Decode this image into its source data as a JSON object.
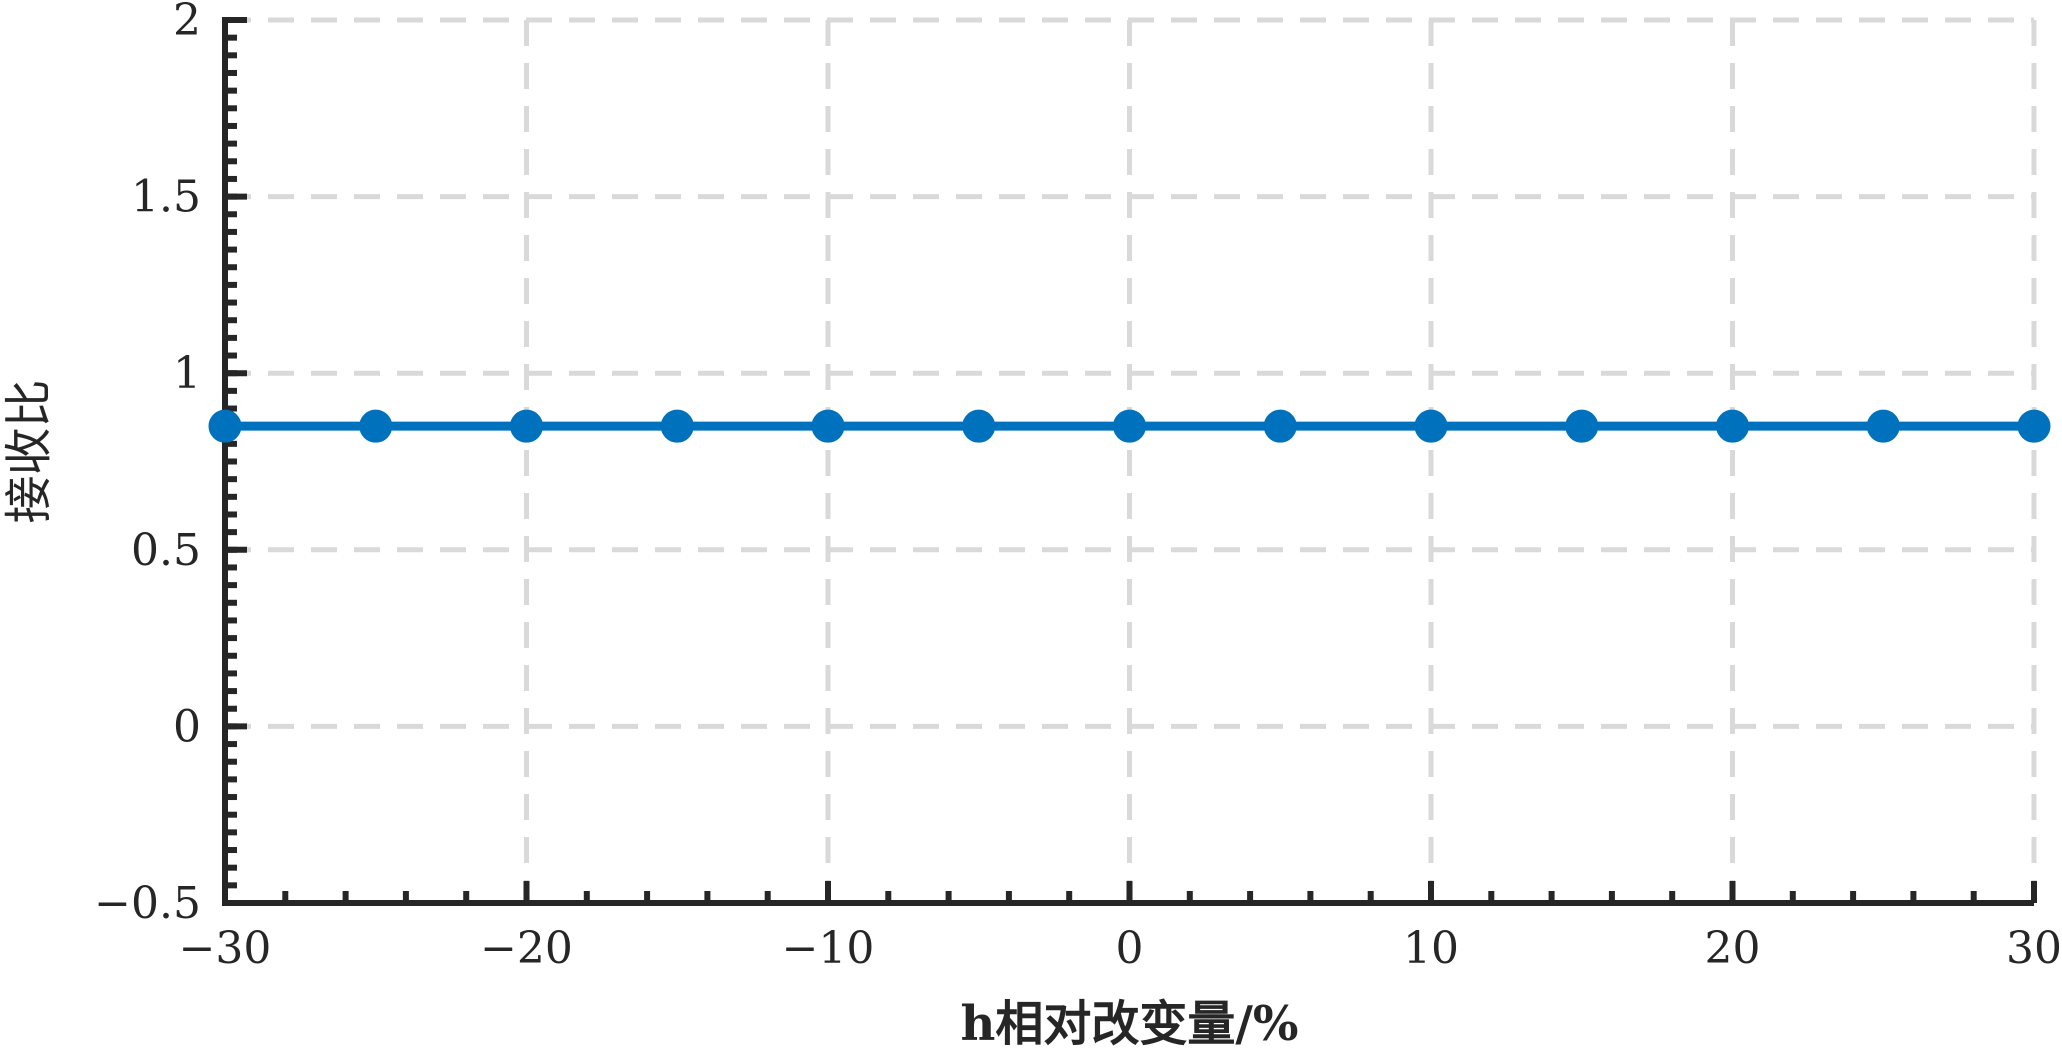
{
  "chart_data": {
    "type": "line",
    "title": "",
    "xlabel": "h相对改变量/%",
    "ylabel": "接收比",
    "xlim": [
      -30,
      30
    ],
    "ylim": [
      -0.5,
      2
    ],
    "xticks": [
      -30,
      -20,
      -10,
      0,
      10,
      20,
      30
    ],
    "yticks": [
      -0.5,
      0,
      0.5,
      1,
      1.5,
      2
    ],
    "xtick_labels": [
      "−30",
      "−20",
      "−10",
      "0",
      "10",
      "20",
      "30"
    ],
    "ytick_labels": [
      "−0.5",
      "0",
      "0.5",
      "1",
      "1.5",
      "2"
    ],
    "grid": true,
    "grid_style": "dashed",
    "series": [
      {
        "color": "#0072BD",
        "marker": "circle",
        "x": [
          -30,
          -25,
          -20,
          -15,
          -10,
          -5,
          0,
          5,
          10,
          15,
          20,
          25,
          30
        ],
        "y": [
          0.85,
          0.85,
          0.85,
          0.85,
          0.85,
          0.85,
          0.85,
          0.85,
          0.85,
          0.85,
          0.85,
          0.85,
          0.85
        ]
      }
    ]
  }
}
